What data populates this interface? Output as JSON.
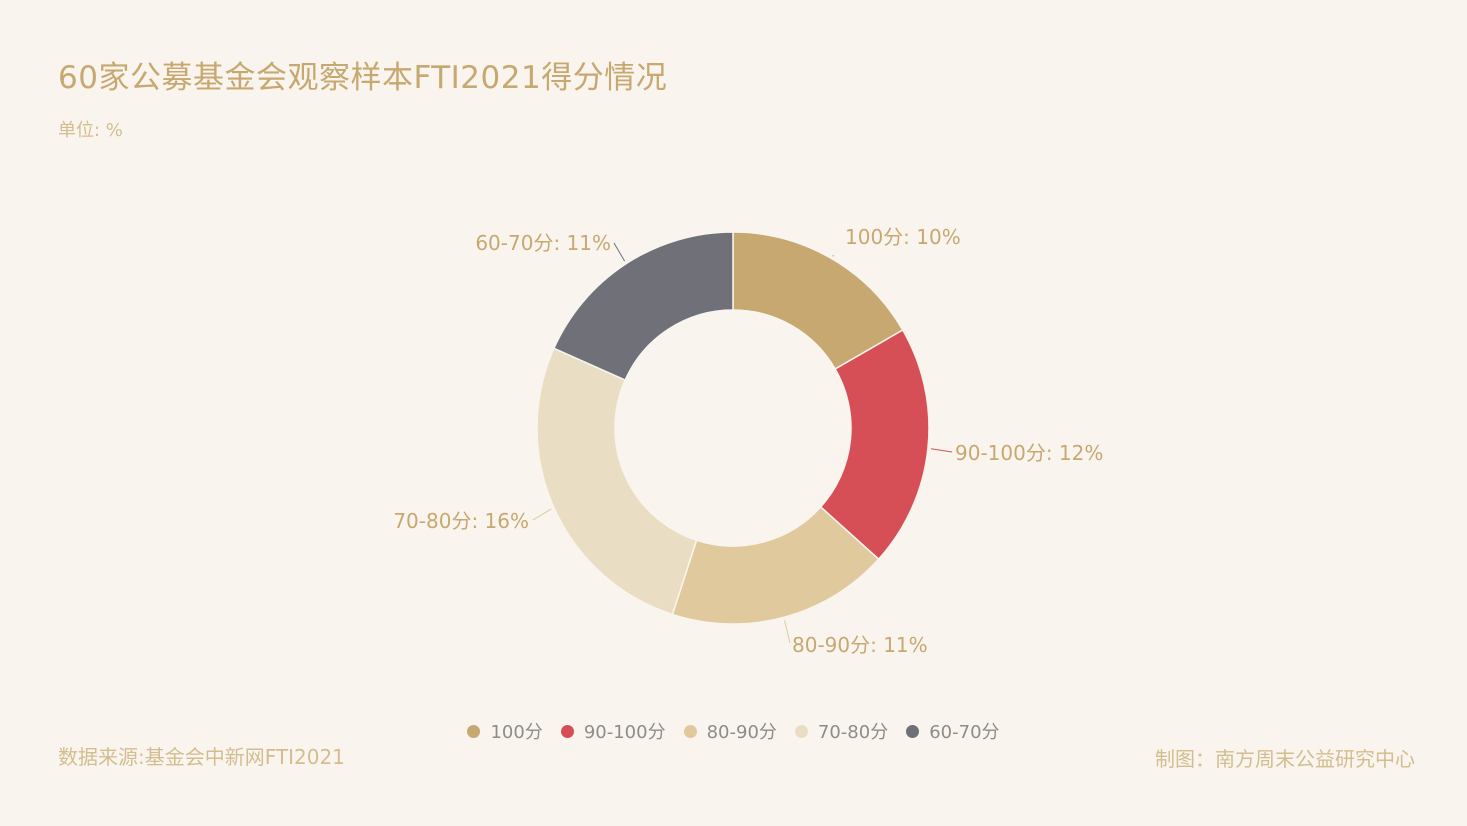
{
  "title": "60家公募基金会观察样本FTI2021得分情况",
  "unit": "单位: %",
  "source": "数据来源:基金会中新网FTI2021",
  "credit": "制图：南方周末公益研究中心",
  "chart_data": {
    "type": "pie",
    "donut": true,
    "categories": [
      "100分",
      "90-100分",
      "80-90分",
      "70-80分",
      "60-70分"
    ],
    "values": [
      10,
      12,
      11,
      16,
      11
    ],
    "data_labels": [
      "100分: 10%",
      "90-100分: 12%",
      "80-90分: 11%",
      "70-80分: 16%",
      "60-70分: 11%"
    ],
    "colors": [
      "#c6a870",
      "#d64f56",
      "#e0c99c",
      "#e9dec3",
      "#6f7078"
    ],
    "label_color": "#c6a870",
    "legend": "bottom-center"
  }
}
